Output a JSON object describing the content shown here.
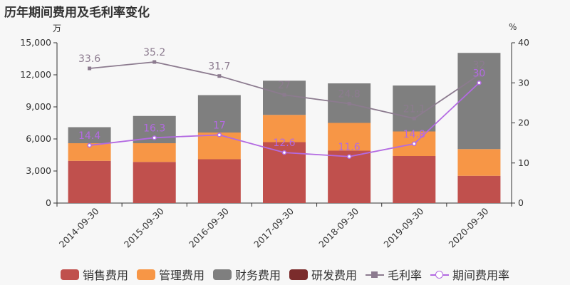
{
  "title": "历年期间费用及毛利率变化",
  "unit_left": "万",
  "unit_right": "%",
  "legend": {
    "sales": "销售费用",
    "admin": "管理费用",
    "finance": "财务费用",
    "rnd": "研发费用",
    "gross": "毛利率",
    "period": "期间费用率"
  },
  "colors": {
    "sales": "#c0504d",
    "admin": "#f79646",
    "finance": "#7f7f7f",
    "rnd": "#7b2c2c",
    "gross": "#8c7b8f",
    "period": "#b36ae2"
  },
  "chart_data": {
    "type": "bar",
    "categories": [
      "2014-09-30",
      "2015-09-30",
      "2016-09-30",
      "2017-09-30",
      "2018-09-30",
      "2019-09-30",
      "2020-09-30"
    ],
    "series": [
      {
        "name": "销售费用",
        "values": [
          3950,
          3850,
          4100,
          5700,
          4900,
          4400,
          2550
        ]
      },
      {
        "name": "管理费用",
        "values": [
          1650,
          1750,
          2500,
          2550,
          2600,
          2300,
          2500
        ]
      },
      {
        "name": "财务费用",
        "values": [
          1500,
          2550,
          3500,
          3200,
          3700,
          4300,
          9000
        ]
      },
      {
        "name": "研发费用",
        "values": [
          0,
          0,
          0,
          0,
          0,
          0,
          0
        ]
      }
    ],
    "lines": [
      {
        "name": "毛利率",
        "axis": "right",
        "values": [
          33.6,
          35.2,
          31.7,
          27,
          24.8,
          21.1,
          32
        ],
        "labels": [
          "33.6",
          "35.2",
          "31.7",
          "27",
          "24.8",
          "21.1",
          "32"
        ]
      },
      {
        "name": "期间费用率",
        "axis": "right",
        "values": [
          14.4,
          16.3,
          17,
          12.6,
          11.6,
          14.8,
          30
        ],
        "labels": [
          "14.4",
          "16.3",
          "17",
          "12.6",
          "11.6",
          "14.8",
          "30"
        ]
      }
    ],
    "y_left": {
      "min": 0,
      "max": 15000,
      "ticks": [
        "0",
        "3,000",
        "6,000",
        "9,000",
        "12,000",
        "15,000"
      ]
    },
    "y_right": {
      "min": 0,
      "max": 40,
      "ticks": [
        "0",
        "10",
        "20",
        "30",
        "40"
      ]
    },
    "stacked": true,
    "legend_position": "bottom"
  }
}
